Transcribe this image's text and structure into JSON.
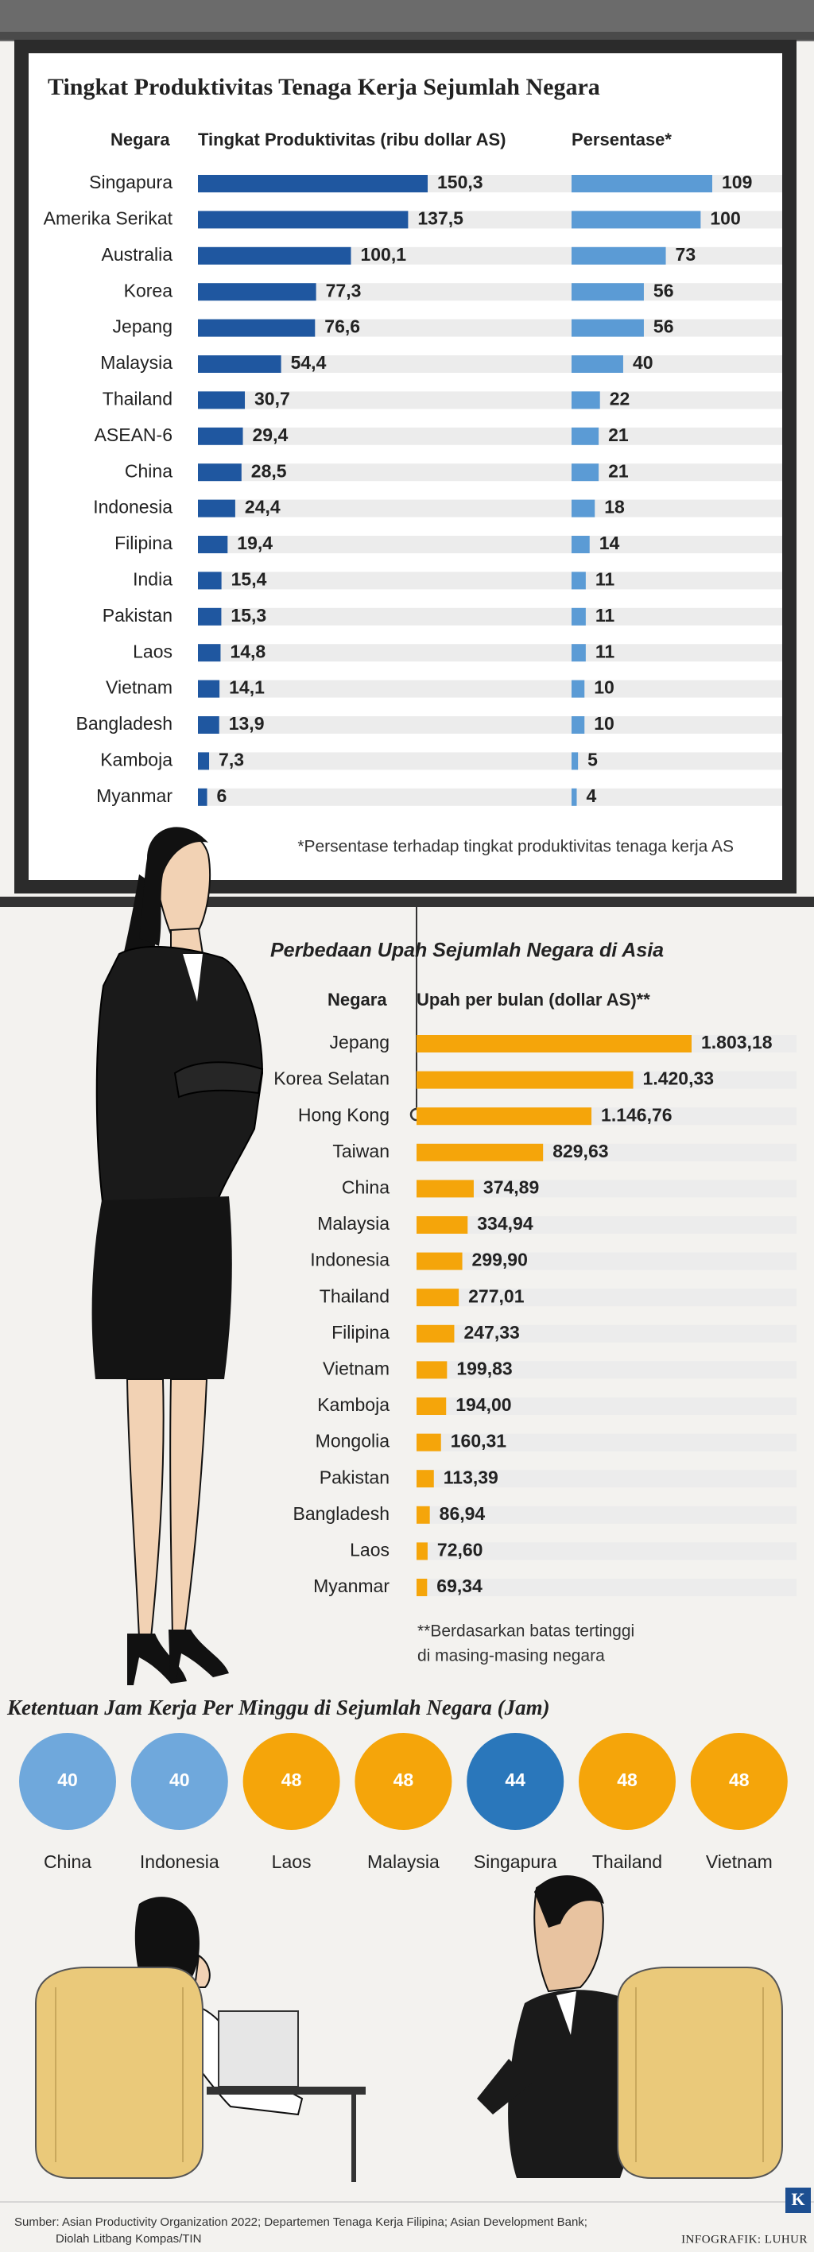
{
  "chart_data": [
    {
      "type": "bar",
      "orientation": "horizontal",
      "title": "Tingkat Produktivitas Tenaga Kerja Sejumlah Negara",
      "category_header": "Negara",
      "categories": [
        "Singapura",
        "Amerika Serikat",
        "Australia",
        "Korea",
        "Jepang",
        "Malaysia",
        "Thailand",
        "ASEAN-6",
        "China",
        "Indonesia",
        "Filipina",
        "India",
        "Pakistan",
        "Laos",
        "Vietnam",
        "Bangladesh",
        "Kamboja",
        "Myanmar"
      ],
      "series": [
        {
          "name": "Tingkat Produktivitas (ribu dollar AS)",
          "color": "#1f57a0",
          "values": [
            150.3,
            137.5,
            100.1,
            77.3,
            76.6,
            54.4,
            30.7,
            29.4,
            28.5,
            24.4,
            19.4,
            15.4,
            15.3,
            14.8,
            14.1,
            13.9,
            7.3,
            6
          ],
          "value_labels": [
            "150,3",
            "137,5",
            "100,1",
            "77,3",
            "76,6",
            "54,4",
            "30,7",
            "29,4",
            "28,5",
            "24,4",
            "19,4",
            "15,4",
            "15,3",
            "14,8",
            "14,1",
            "13,9",
            "7,3",
            "6"
          ]
        },
        {
          "name": "Persentase*",
          "color": "#5b9bd5",
          "values": [
            109,
            100,
            73,
            56,
            56,
            40,
            22,
            21,
            21,
            18,
            14,
            11,
            11,
            11,
            10,
            10,
            5,
            4
          ]
        }
      ],
      "note": [
        "*Persentase terhadap tingkat produktivitas tenaga kerja AS"
      ]
    },
    {
      "type": "bar",
      "orientation": "horizontal",
      "title": "Perbedaan Upah Sejumlah Negara di Asia",
      "category_header": "Negara",
      "categories": [
        "Jepang",
        "Korea Selatan",
        "Hong Kong",
        "Taiwan",
        "China",
        "Malaysia",
        "Indonesia",
        "Thailand",
        "Filipina",
        "Vietnam",
        "Kamboja",
        "Mongolia",
        "Pakistan",
        "Bangladesh",
        "Laos",
        "Myanmar"
      ],
      "series": [
        {
          "name": "Upah per bulan (dollar AS)**",
          "color": "#f5a50a",
          "values": [
            1803.18,
            1420.33,
            1146.76,
            829.63,
            374.89,
            334.94,
            299.9,
            277.01,
            247.33,
            199.83,
            194.0,
            160.31,
            113.39,
            86.94,
            72.6,
            69.34
          ],
          "value_labels": [
            "1.803,18",
            "1.420,33",
            "1.146,76",
            "829,63",
            "374,89",
            "334,94",
            "299,90",
            "277,01",
            "247,33",
            "199,83",
            "194,00",
            "160,31",
            "113,39",
            "86,94",
            "72,60",
            "69,34"
          ]
        }
      ],
      "note": [
        "**Berdasarkan batas tertinggi",
        "di masing-masing negara"
      ]
    },
    {
      "type": "circles",
      "title": "Ketentuan Jam Kerja Per Minggu di Sejumlah Negara (Jam)",
      "categories": [
        "China",
        "Indonesia",
        "Laos",
        "Malaysia",
        "Singapura",
        "Thailand",
        "Vietnam"
      ],
      "values": [
        40,
        40,
        48,
        48,
        44,
        48,
        48
      ],
      "colors": [
        "#6fa8dc",
        "#6fa8dc",
        "#f5a50a",
        "#f5a50a",
        "#2a77bb",
        "#f5a50a",
        "#f5a50a"
      ]
    }
  ],
  "footer": {
    "source": [
      "Sumber: Asian Productivity Organization 2022; Departemen Tenaga Kerja Filipina; Asian Development Bank;",
      "Diolah Litbang Kompas/TIN"
    ],
    "credit": "INFOGRAFIK: LUHUR",
    "logo": "K"
  }
}
